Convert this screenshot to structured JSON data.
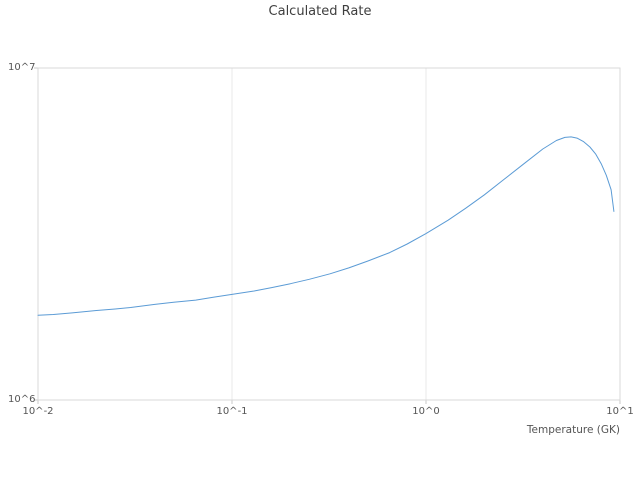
{
  "chart_data": {
    "type": "line",
    "title": "Calculated Rate",
    "xlabel": "Temperature (GK)",
    "ylabel": "",
    "xscale": "log",
    "yscale": "log",
    "xlim": [
      0.01,
      10
    ],
    "ylim": [
      1000000,
      10000000
    ],
    "x_ticks": [
      0.01,
      0.1,
      1,
      10
    ],
    "y_ticks": [
      1000000,
      10000000
    ],
    "x_tick_labels": [
      "10^-2",
      "10^-1",
      "10^0",
      "10^1"
    ],
    "y_tick_labels": [
      "10^6",
      "10^7"
    ],
    "grid": true,
    "legend": "none",
    "line_color": "#5b9bd5",
    "grid_color": "#e8e8e8",
    "border_color": "#d9d9d9",
    "series": [
      {
        "name": "Calculated Rate",
        "x": [
          0.01,
          0.012,
          0.015,
          0.02,
          0.025,
          0.03,
          0.04,
          0.05,
          0.065,
          0.08,
          0.1,
          0.13,
          0.16,
          0.2,
          0.25,
          0.32,
          0.4,
          0.5,
          0.65,
          0.8,
          1.0,
          1.3,
          1.6,
          2.0,
          2.5,
          3.2,
          4.0,
          4.7,
          5.2,
          5.6,
          6.0,
          6.5,
          7.0,
          7.5,
          8.0,
          8.5,
          9.0,
          9.3
        ],
        "y": [
          1800000,
          1810000,
          1830000,
          1860000,
          1880000,
          1900000,
          1940000,
          1970000,
          2000000,
          2040000,
          2080000,
          2130000,
          2180000,
          2240000,
          2310000,
          2400000,
          2500000,
          2620000,
          2780000,
          2950000,
          3170000,
          3480000,
          3780000,
          4150000,
          4600000,
          5150000,
          5700000,
          6050000,
          6180000,
          6200000,
          6150000,
          6000000,
          5780000,
          5500000,
          5150000,
          4750000,
          4300000,
          3700000
        ]
      }
    ]
  }
}
